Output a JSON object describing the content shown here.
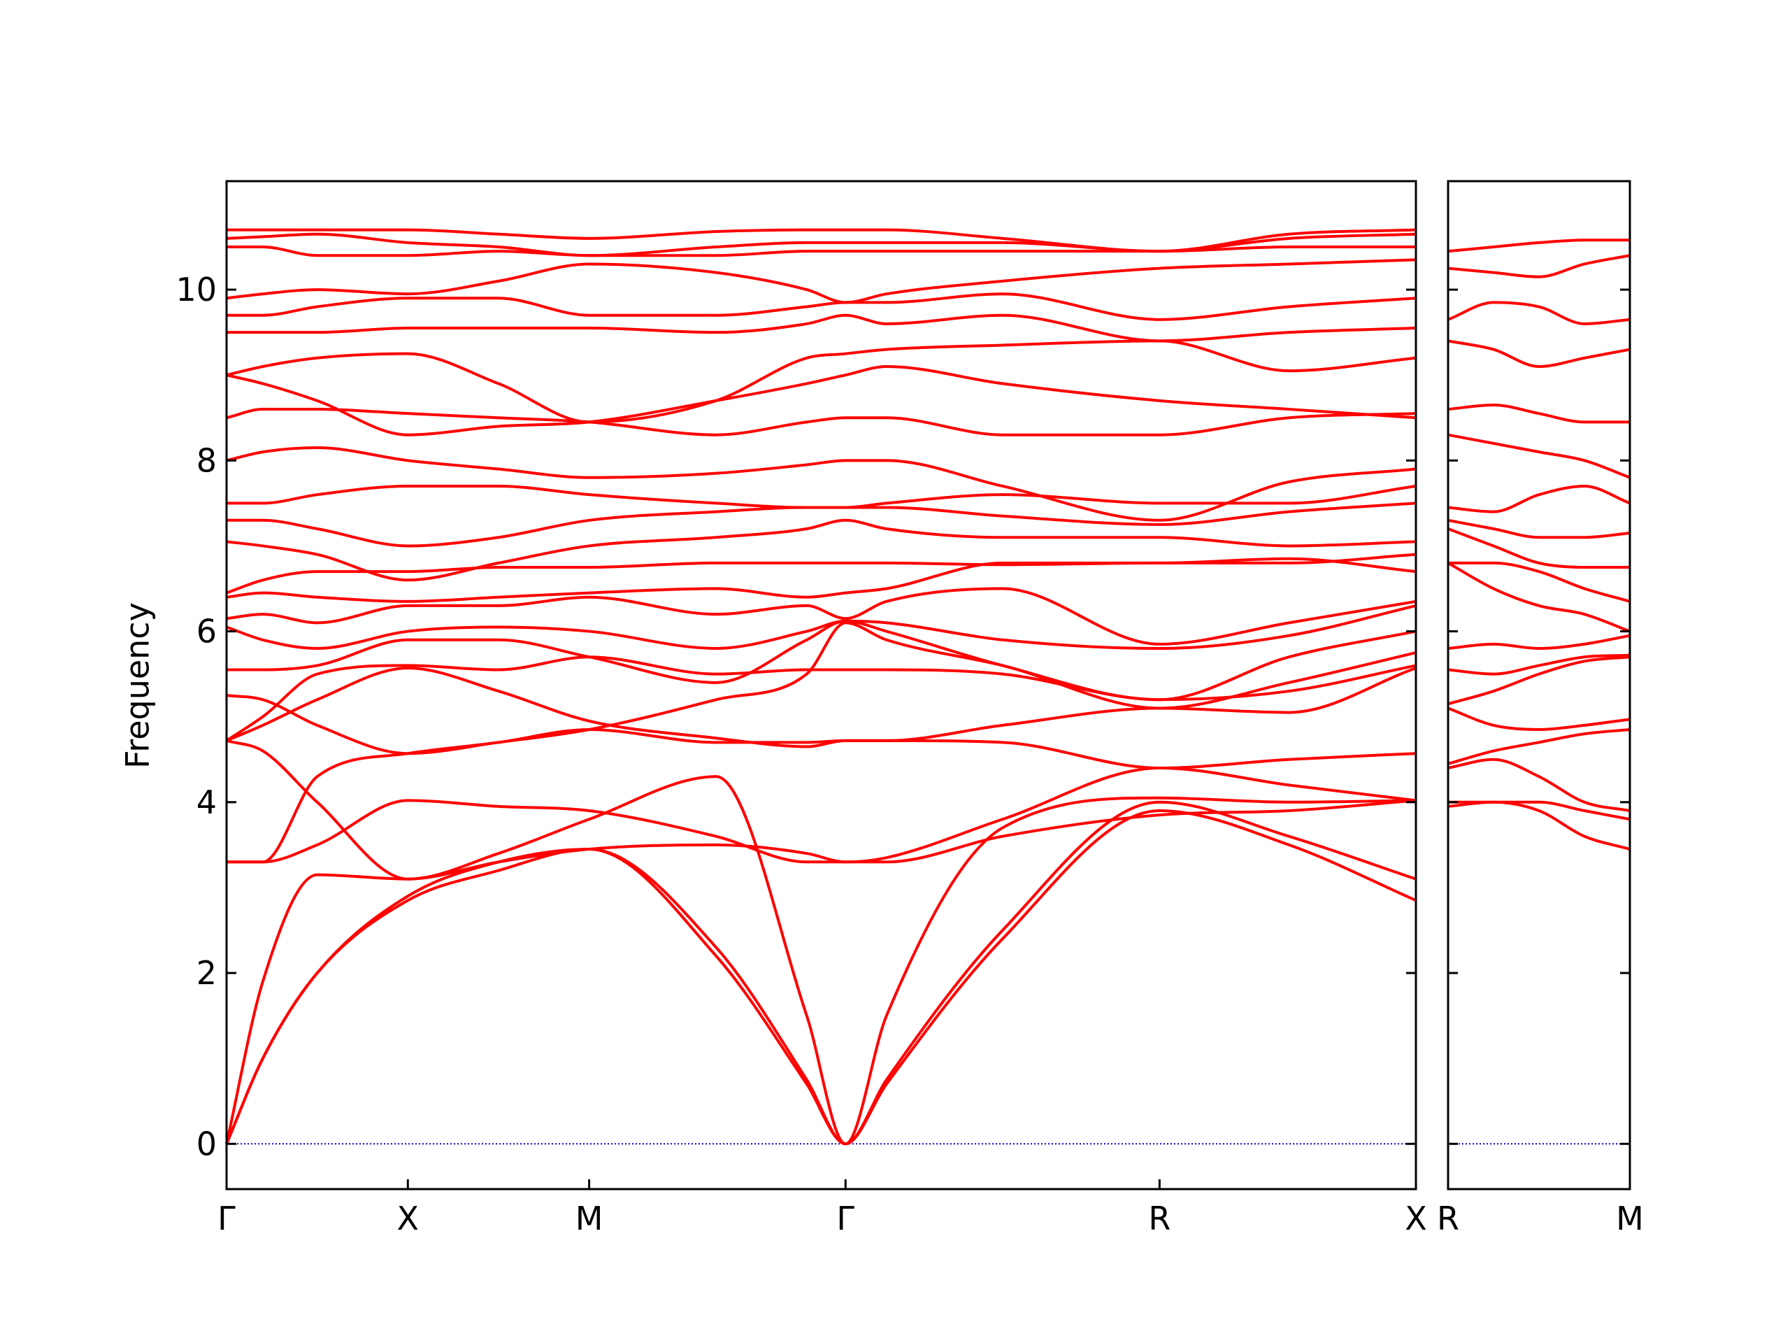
{
  "chart_data": [
    {
      "type": "line",
      "ylabel": "Frequency",
      "color": "#ff0000",
      "xlim": [
        0,
        3.28
      ],
      "ylim": [
        -0.53,
        11.27
      ],
      "xticks": [
        {
          "value": 0,
          "label": "Γ"
        },
        {
          "value": 0.5,
          "label": "X"
        },
        {
          "value": 1.0,
          "label": "M"
        },
        {
          "value": 1.707,
          "label": "Γ"
        },
        {
          "value": 2.573,
          "label": "R"
        },
        {
          "value": 3.28,
          "label": "X"
        }
      ],
      "yticks": [
        0,
        2,
        4,
        6,
        8,
        10
      ],
      "show_ytick_labels": true,
      "hline": 0,
      "hline_color": "#0000cc",
      "x": [
        0,
        0.1,
        0.25,
        0.5,
        0.75,
        1.0,
        1.35,
        1.6,
        1.707,
        1.82,
        2.14,
        2.573,
        2.93,
        3.28
      ],
      "series": [
        {
          "values": [
            0,
            1.0,
            2.0,
            2.85,
            3.2,
            3.45,
            2.2,
            0.7,
            0,
            0.7,
            2.4,
            3.9,
            3.5,
            2.85
          ]
        },
        {
          "values": [
            0,
            1.0,
            2.0,
            2.9,
            3.3,
            3.45,
            2.3,
            0.75,
            0,
            0.75,
            2.5,
            4.0,
            3.6,
            3.1
          ]
        },
        {
          "values": [
            0,
            1.9,
            3.15,
            3.1,
            3.4,
            3.8,
            4.3,
            1.5,
            0,
            1.5,
            3.7,
            4.05,
            4.0,
            4.02
          ]
        },
        {
          "values": [
            3.3,
            3.3,
            3.5,
            4.02,
            3.95,
            3.9,
            3.6,
            3.3,
            3.3,
            3.3,
            3.6,
            3.85,
            3.9,
            4.02
          ]
        },
        {
          "values": [
            3.3,
            3.3,
            4.3,
            4.57,
            4.7,
            4.85,
            4.7,
            4.7,
            4.72,
            4.72,
            4.7,
            4.4,
            4.5,
            4.57
          ]
        },
        {
          "values": [
            4.72,
            4.6,
            4.0,
            3.1,
            3.3,
            3.45,
            3.5,
            3.4,
            3.3,
            3.35,
            3.8,
            4.4,
            4.2,
            4.02
          ]
        },
        {
          "values": [
            4.72,
            4.9,
            5.2,
            5.57,
            5.3,
            4.95,
            4.75,
            4.65,
            4.72,
            4.72,
            4.9,
            5.1,
            5.05,
            5.57
          ]
        },
        {
          "values": [
            4.72,
            5.0,
            5.5,
            5.6,
            5.55,
            5.7,
            5.5,
            5.55,
            5.55,
            5.55,
            5.5,
            5.2,
            5.3,
            5.6
          ]
        },
        {
          "values": [
            5.25,
            5.2,
            4.9,
            4.57,
            4.7,
            4.85,
            5.2,
            5.5,
            6.1,
            5.9,
            5.6,
            5.1,
            5.4,
            5.75
          ]
        },
        {
          "values": [
            5.55,
            5.55,
            5.6,
            5.9,
            5.9,
            5.7,
            5.4,
            5.9,
            6.12,
            6.0,
            5.6,
            5.2,
            5.7,
            6.0
          ]
        },
        {
          "values": [
            6.05,
            5.9,
            5.8,
            6.0,
            6.05,
            6.0,
            5.8,
            6.0,
            6.12,
            6.1,
            5.9,
            5.8,
            5.95,
            6.3
          ]
        },
        {
          "values": [
            6.15,
            6.2,
            6.1,
            6.3,
            6.3,
            6.4,
            6.2,
            6.3,
            6.15,
            6.35,
            6.5,
            5.85,
            6.1,
            6.35
          ]
        },
        {
          "values": [
            6.4,
            6.45,
            6.4,
            6.35,
            6.4,
            6.45,
            6.5,
            6.4,
            6.45,
            6.5,
            6.8,
            6.8,
            6.85,
            6.7
          ]
        },
        {
          "values": [
            6.45,
            6.6,
            6.7,
            6.7,
            6.75,
            6.75,
            6.8,
            6.8,
            6.8,
            6.8,
            6.78,
            6.8,
            6.8,
            6.9
          ]
        },
        {
          "values": [
            7.05,
            7.0,
            6.9,
            6.6,
            6.8,
            7.0,
            7.1,
            7.2,
            7.3,
            7.2,
            7.1,
            7.1,
            7.0,
            7.05
          ]
        },
        {
          "values": [
            7.3,
            7.3,
            7.2,
            7.0,
            7.1,
            7.3,
            7.4,
            7.45,
            7.45,
            7.45,
            7.35,
            7.25,
            7.4,
            7.5
          ]
        },
        {
          "values": [
            7.5,
            7.5,
            7.6,
            7.7,
            7.7,
            7.6,
            7.5,
            7.45,
            7.45,
            7.5,
            7.6,
            7.5,
            7.5,
            7.7
          ]
        },
        {
          "values": [
            8.0,
            8.1,
            8.15,
            8.0,
            7.9,
            7.8,
            7.85,
            7.95,
            8.0,
            8.0,
            7.7,
            7.3,
            7.75,
            7.9
          ]
        },
        {
          "values": [
            8.5,
            8.6,
            8.6,
            8.55,
            8.5,
            8.45,
            8.3,
            8.45,
            8.5,
            8.5,
            8.3,
            8.3,
            8.5,
            8.55
          ]
        },
        {
          "values": [
            9.0,
            8.9,
            8.7,
            8.3,
            8.4,
            8.45,
            8.7,
            8.9,
            9.0,
            9.1,
            8.9,
            8.7,
            8.6,
            8.5
          ]
        },
        {
          "values": [
            9.0,
            9.1,
            9.2,
            9.25,
            8.9,
            8.45,
            8.7,
            9.2,
            9.25,
            9.3,
            9.35,
            9.4,
            9.05,
            9.2
          ]
        },
        {
          "values": [
            9.5,
            9.5,
            9.5,
            9.55,
            9.55,
            9.55,
            9.5,
            9.6,
            9.7,
            9.6,
            9.7,
            9.4,
            9.5,
            9.55
          ]
        },
        {
          "values": [
            9.7,
            9.7,
            9.8,
            9.9,
            9.9,
            9.7,
            9.7,
            9.8,
            9.85,
            9.85,
            9.95,
            9.65,
            9.8,
            9.9
          ]
        },
        {
          "values": [
            9.9,
            9.95,
            10.0,
            9.95,
            10.1,
            10.3,
            10.2,
            10.0,
            9.85,
            9.95,
            10.1,
            10.25,
            10.3,
            10.35
          ]
        },
        {
          "values": [
            10.5,
            10.5,
            10.4,
            10.4,
            10.45,
            10.4,
            10.4,
            10.45,
            10.45,
            10.45,
            10.45,
            10.45,
            10.5,
            10.5
          ]
        },
        {
          "values": [
            10.6,
            10.62,
            10.65,
            10.55,
            10.5,
            10.4,
            10.5,
            10.55,
            10.55,
            10.55,
            10.55,
            10.45,
            10.6,
            10.65
          ]
        },
        {
          "values": [
            10.7,
            10.7,
            10.7,
            10.7,
            10.65,
            10.6,
            10.68,
            10.7,
            10.7,
            10.7,
            10.6,
            10.45,
            10.65,
            10.7
          ]
        }
      ]
    },
    {
      "type": "line",
      "color": "#ff0000",
      "xlim": [
        0,
        0.5
      ],
      "ylim": [
        -0.53,
        11.27
      ],
      "xticks": [
        {
          "value": 0,
          "label": "R"
        },
        {
          "value": 0.5,
          "label": "M"
        }
      ],
      "yticks": [
        0,
        2,
        4,
        6,
        8,
        10
      ],
      "show_ytick_labels": false,
      "hline": 0,
      "hline_color": "#0000cc",
      "x": [
        0,
        0.125,
        0.25,
        0.375,
        0.5
      ],
      "series": [
        {
          "values": [
            3.95,
            4.0,
            3.9,
            3.6,
            3.45
          ]
        },
        {
          "values": [
            4.0,
            4.0,
            4.0,
            3.9,
            3.8
          ]
        },
        {
          "values": [
            4.4,
            4.5,
            4.3,
            4.0,
            3.9
          ]
        },
        {
          "values": [
            4.45,
            4.6,
            4.7,
            4.8,
            4.85
          ]
        },
        {
          "values": [
            5.1,
            4.9,
            4.85,
            4.9,
            4.97
          ]
        },
        {
          "values": [
            5.15,
            5.3,
            5.5,
            5.65,
            5.7
          ]
        },
        {
          "values": [
            5.55,
            5.5,
            5.6,
            5.7,
            5.72
          ]
        },
        {
          "values": [
            5.8,
            5.85,
            5.8,
            5.85,
            5.95
          ]
        },
        {
          "values": [
            6.8,
            6.5,
            6.3,
            6.2,
            6.0
          ]
        },
        {
          "values": [
            6.8,
            6.8,
            6.7,
            6.5,
            6.35
          ]
        },
        {
          "values": [
            7.2,
            7.0,
            6.8,
            6.75,
            6.75
          ]
        },
        {
          "values": [
            7.3,
            7.2,
            7.1,
            7.1,
            7.15
          ]
        },
        {
          "values": [
            7.45,
            7.4,
            7.6,
            7.7,
            7.5
          ]
        },
        {
          "values": [
            8.3,
            8.2,
            8.1,
            8.0,
            7.8
          ]
        },
        {
          "values": [
            8.6,
            8.65,
            8.55,
            8.45,
            8.45
          ]
        },
        {
          "values": [
            9.4,
            9.3,
            9.1,
            9.2,
            9.3
          ]
        },
        {
          "values": [
            9.65,
            9.85,
            9.8,
            9.6,
            9.65
          ]
        },
        {
          "values": [
            10.25,
            10.2,
            10.15,
            10.3,
            10.4
          ]
        },
        {
          "values": [
            10.45,
            10.5,
            10.55,
            10.58,
            10.58
          ]
        }
      ]
    }
  ]
}
